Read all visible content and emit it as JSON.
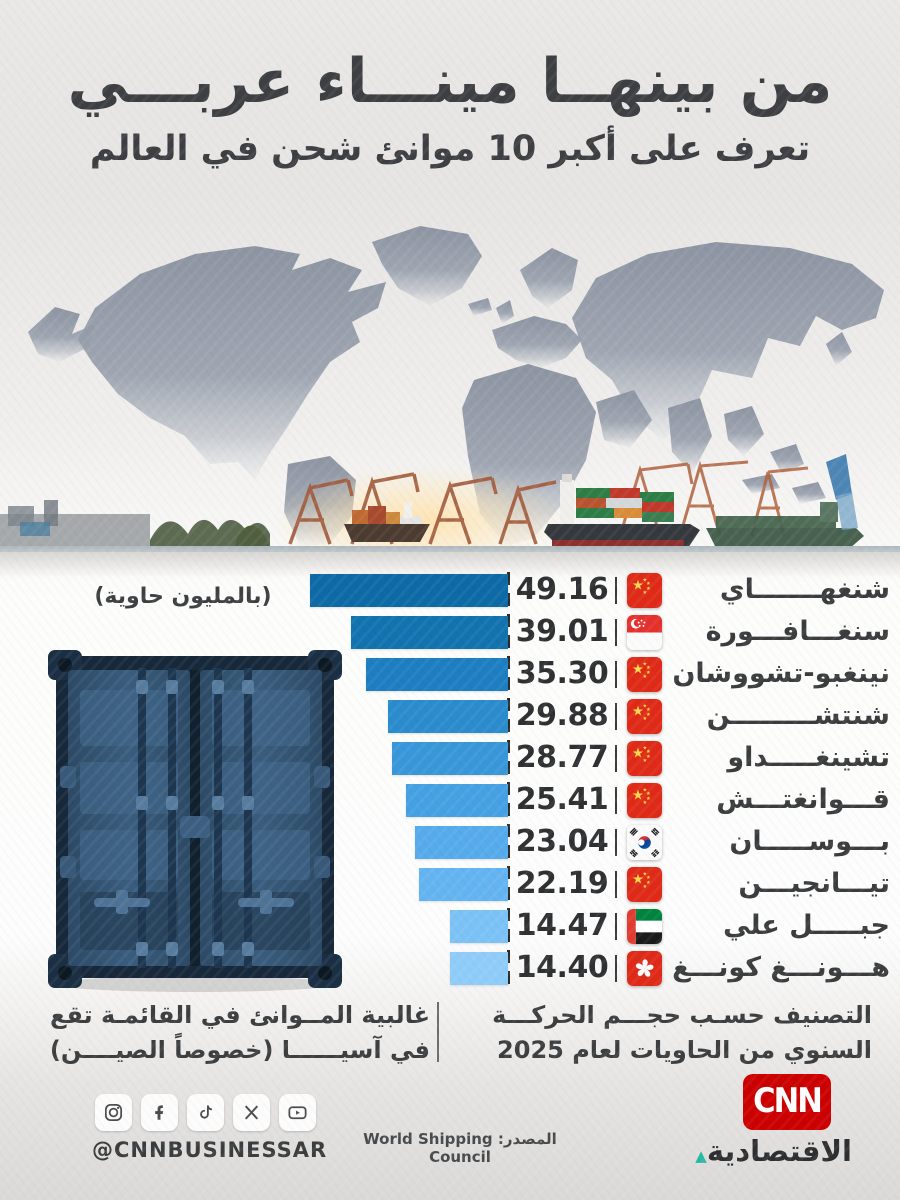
{
  "header": {
    "title": "من بينهــا مينـــاء عربـــي",
    "subtitle": "تعرف على أكبر 10 موانئ شحن في العالم"
  },
  "chart_data": {
    "type": "bar",
    "orientation": "horizontal-rtl",
    "title": "أكبر 10 موانئ شحن في العالم",
    "unit_label": "(بالمليون حاوية)",
    "max_value": 49.16,
    "categories": [
      "شنغهـــــــاي",
      "سنغـــافـــورة",
      "نينغبو-تشووشان",
      "شنتشـــــــــن",
      "تشينغـــــداو",
      "قـــوانغتـــش",
      "بـــوســـــان",
      "تيـــانجيـــن",
      "جبـــــل علي",
      "هـــونـــغ كونـــغ"
    ],
    "values": [
      49.16,
      39.01,
      35.3,
      29.88,
      28.77,
      25.41,
      23.04,
      22.19,
      14.47,
      14.4
    ],
    "value_labels": [
      "49.16",
      "39.01",
      "35.30",
      "29.88",
      "28.77",
      "25.41",
      "23.04",
      "22.19",
      "14.47",
      "14.40"
    ],
    "countries": [
      "china",
      "singapore",
      "china",
      "china",
      "china",
      "china",
      "south-korea",
      "china",
      "uae",
      "hong-kong"
    ],
    "bar_colors": [
      "#0d6aa6",
      "#1273af",
      "#1d7ec1",
      "#2a8bcd",
      "#3997d9",
      "#45a1e3",
      "#55abeb",
      "#63b4f1",
      "#7bc2f6",
      "#8fccf9"
    ],
    "legend": "none",
    "grid": false
  },
  "notes": {
    "left": {
      "line1": "غالبية المــوانئ في القائمـة تقع",
      "line2": "في آسيــــــا (خصوصاً الصيــــن)"
    },
    "right": {
      "line1": "التصنيف حسـب حجـــم الحركـــة",
      "line2": "السنوي من الحاويات لعام 2025"
    }
  },
  "footer": {
    "social_icons": [
      "instagram-icon",
      "facebook-icon",
      "tiktok-icon",
      "x-icon",
      "youtube-icon"
    ],
    "social_handle": "@CNNBUSINESSAR",
    "source_label": "المصدر:",
    "source_value": "World Shipping Council",
    "logo": {
      "cnn": "CNN",
      "brand": "الاقتصادية",
      "dot": "▲"
    }
  },
  "colors": {
    "bar_darkest": "#0d6aa6",
    "bar_lightest": "#8fccf9",
    "cnn_red": "#cc0000",
    "brand_teal": "#27b9a6",
    "text_dark": "#3d3f42",
    "background": "#eae8e6"
  }
}
